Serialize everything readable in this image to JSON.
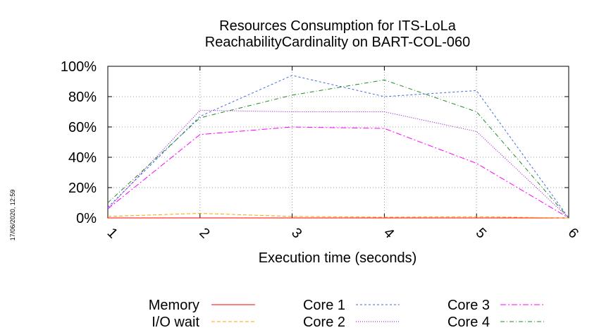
{
  "chart_data": {
    "type": "line",
    "title_line1": "Resources Consumption for ITS-LoLa",
    "title_line2": "ReachabilityCardinality on BART-COL-060",
    "xlabel": "Execution time (seconds)",
    "ylabel": "",
    "timestamp": "17/06/2020, 12:59",
    "x": [
      1,
      2,
      3,
      4,
      5,
      6
    ],
    "xlim": [
      1,
      6
    ],
    "ylim": [
      0,
      100
    ],
    "y_ticks": [
      0,
      20,
      40,
      60,
      80,
      100
    ],
    "y_tick_labels": [
      "0%",
      "20%",
      "40%",
      "60%",
      "80%",
      "100%"
    ],
    "x_ticks": [
      1,
      2,
      3,
      4,
      5,
      6
    ],
    "x_tick_labels": [
      "1",
      "2",
      "3",
      "4",
      "5",
      "6"
    ],
    "grid": true,
    "legend_position": "bottom",
    "series": [
      {
        "name": "Memory",
        "color": "#ff0000",
        "dash": "",
        "values": [
          0,
          0,
          0,
          0,
          0,
          0
        ]
      },
      {
        "name": "I/O wait",
        "color": "#ffa500",
        "dash": "5 3",
        "values": [
          1,
          3,
          1,
          0.5,
          0.8,
          0
        ]
      },
      {
        "name": "Core 1",
        "color": "#4169e1",
        "dash": "3 3",
        "values": [
          7,
          67,
          94,
          80,
          84,
          0
        ]
      },
      {
        "name": "Core 2",
        "color": "#9400d3",
        "dash": "1 2",
        "values": [
          6,
          71,
          70,
          70,
          57,
          0
        ]
      },
      {
        "name": "Core 3",
        "color": "#ff00ff",
        "dash": "8 3 2 3",
        "values": [
          6,
          55,
          60,
          59,
          36,
          0
        ]
      },
      {
        "name": "Core 4",
        "color": "#228b22",
        "dash": "6 3 1 3",
        "values": [
          10,
          66,
          81,
          91,
          70,
          0
        ]
      }
    ]
  }
}
